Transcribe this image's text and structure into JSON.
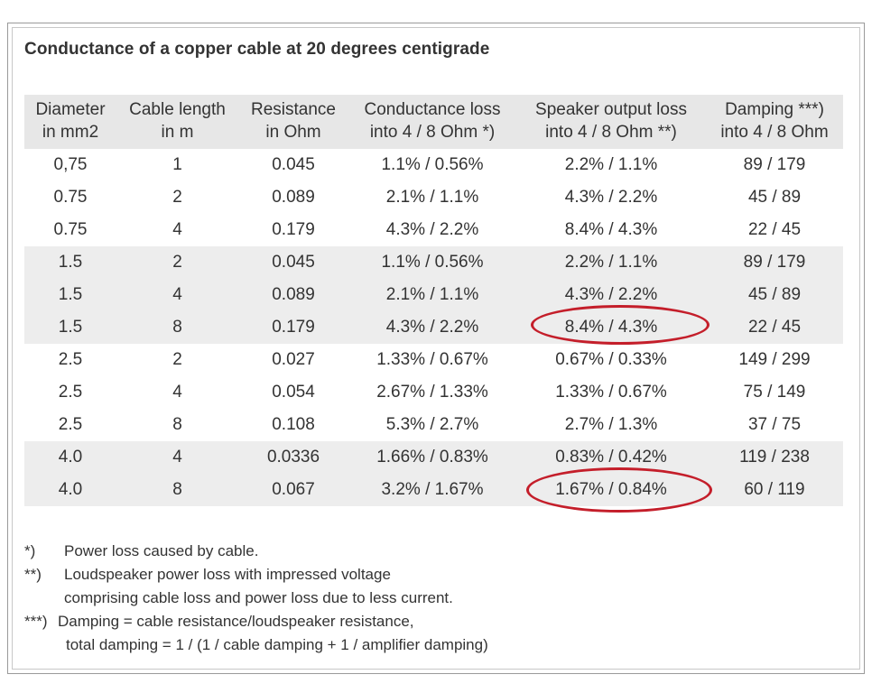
{
  "title": "Conductance of a copper cable at 20 degrees centigrade",
  "columns": [
    {
      "line1": "Diameter",
      "line2": "in mm2"
    },
    {
      "line1": "Cable length",
      "line2": "in m"
    },
    {
      "line1": "Resistance",
      "line2": "in Ohm"
    },
    {
      "line1": "Conductance loss",
      "line2": "into 4 / 8 Ohm *)"
    },
    {
      "line1": "Speaker output loss",
      "line2": "into 4 / 8 Ohm **)"
    },
    {
      "line1": "Damping ***)",
      "line2": "into 4 / 8 Ohm"
    }
  ],
  "rows": [
    [
      "0,75",
      "1",
      "0.045",
      "1.1% / 0.56%",
      "2.2% / 1.1%",
      "89 / 179"
    ],
    [
      "0.75",
      "2",
      "0.089",
      "2.1% / 1.1%",
      "4.3% / 2.2%",
      "45 / 89"
    ],
    [
      "0.75",
      "4",
      "0.179",
      "4.3% / 2.2%",
      "8.4% / 4.3%",
      "22 / 45"
    ],
    [
      "1.5",
      "2",
      "0.045",
      "1.1% / 0.56%",
      "2.2% / 1.1%",
      "89 / 179"
    ],
    [
      "1.5",
      "4",
      "0.089",
      "2.1% / 1.1%",
      "4.3% / 2.2%",
      "45 / 89"
    ],
    [
      "1.5",
      "8",
      "0.179",
      "4.3% / 2.2%",
      "8.4% / 4.3%",
      "22 / 45"
    ],
    [
      "2.5",
      "2",
      "0.027",
      "1.33% / 0.67%",
      "0.67% / 0.33%",
      "149 / 299"
    ],
    [
      "2.5",
      "4",
      "0.054",
      "2.67% / 1.33%",
      "1.33% / 0.67%",
      "75 / 149"
    ],
    [
      "2.5",
      "8",
      "0.108",
      "5.3% / 2.7%",
      "2.7% / 1.3%",
      "37 / 75"
    ],
    [
      "4.0",
      "4",
      "0.0336",
      "1.66% / 0.83%",
      "0.83% / 0.42%",
      "119 / 238"
    ],
    [
      "4.0",
      "8",
      "0.067",
      "3.2% / 1.67%",
      "1.67% / 0.84%",
      "60 / 119"
    ]
  ],
  "highlight_color": "#c41e2a",
  "shade_color": "#ededed",
  "header_color": "#e7e7e7",
  "footnotes": {
    "n1": {
      "mark": "*)",
      "text": "Power loss caused by cable."
    },
    "n2": {
      "mark": "**)",
      "text": "Loudspeaker power loss with impressed voltage",
      "cont": "comprising cable loss and power loss due to less current."
    },
    "n3": {
      "mark": "***)",
      "text": "Damping = cable resistance/loudspeaker resistance,",
      "cont": "total damping = 1 / (1 / cable damping + 1 / amplifier damping)"
    }
  }
}
